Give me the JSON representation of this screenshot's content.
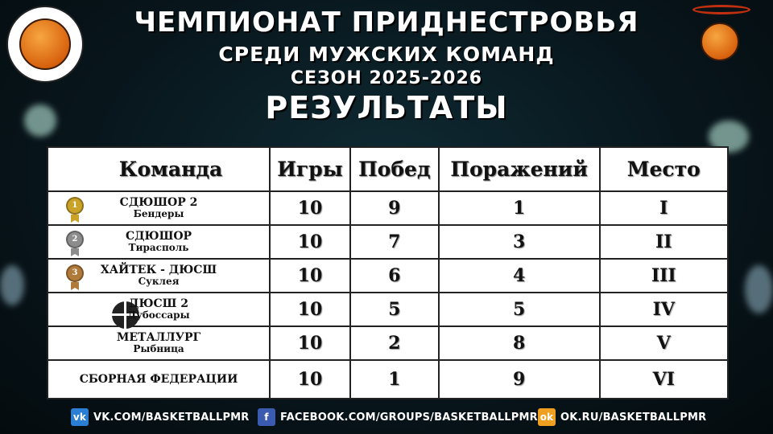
{
  "header": {
    "line1": "ЧЕМПИОНАТ ПРИДНЕСТРОВЬЯ",
    "line2": "СРЕДИ МУЖСКИХ КОМАНД",
    "line3": "СЕЗОН 2025-2026",
    "line4": "РЕЗУЛЬТАТЫ"
  },
  "logos": {
    "left": "Общественная Федерация баскетбола и баскетбола 3 на 3 Приднестровья",
    "right": "ПРИДНЕСТРОВСКИЙ БАСКЕТБОЛ"
  },
  "table": {
    "columns": [
      "Команда",
      "Игры",
      "Побед",
      "Поражений",
      "Место"
    ],
    "rows": [
      {
        "team": "СДЮШОР 2",
        "city": "Бендеры",
        "games": "10",
        "wins": "9",
        "losses": "1",
        "place": "I",
        "medal": "gold"
      },
      {
        "team": "СДЮШОР",
        "city": "Тирасполь",
        "games": "10",
        "wins": "7",
        "losses": "3",
        "place": "II",
        "medal": "silver"
      },
      {
        "team": "ХАЙТЕК - ДЮСШ",
        "city": "Суклея",
        "games": "10",
        "wins": "6",
        "losses": "4",
        "place": "III",
        "medal": "bronze"
      },
      {
        "team": "ДЮСШ 2",
        "city": "Дубоссары",
        "games": "10",
        "wins": "5",
        "losses": "5",
        "place": "IV"
      },
      {
        "team": "МЕТАЛЛУРГ",
        "city": "Рыбница",
        "games": "10",
        "wins": "2",
        "losses": "8",
        "place": "V"
      },
      {
        "team": "СБОРНАЯ ФЕДЕРАЦИИ",
        "city": "",
        "games": "10",
        "wins": "1",
        "losses": "9",
        "place": "VI"
      }
    ]
  },
  "footer": {
    "vk": "VK.COM/BASKETBALLPMR",
    "facebook": "FACEBOOK.COM/GROUPS/BASKETBALLPMR/",
    "ok": "OK.RU/BASKETBALLPMR"
  },
  "colors": {
    "vk": "#2a7fd4",
    "facebook": "#3b5bb0",
    "ok": "#f0a020",
    "gold": "#c9a227",
    "silver": "#8c8c8c",
    "bronze": "#b07a3a"
  }
}
